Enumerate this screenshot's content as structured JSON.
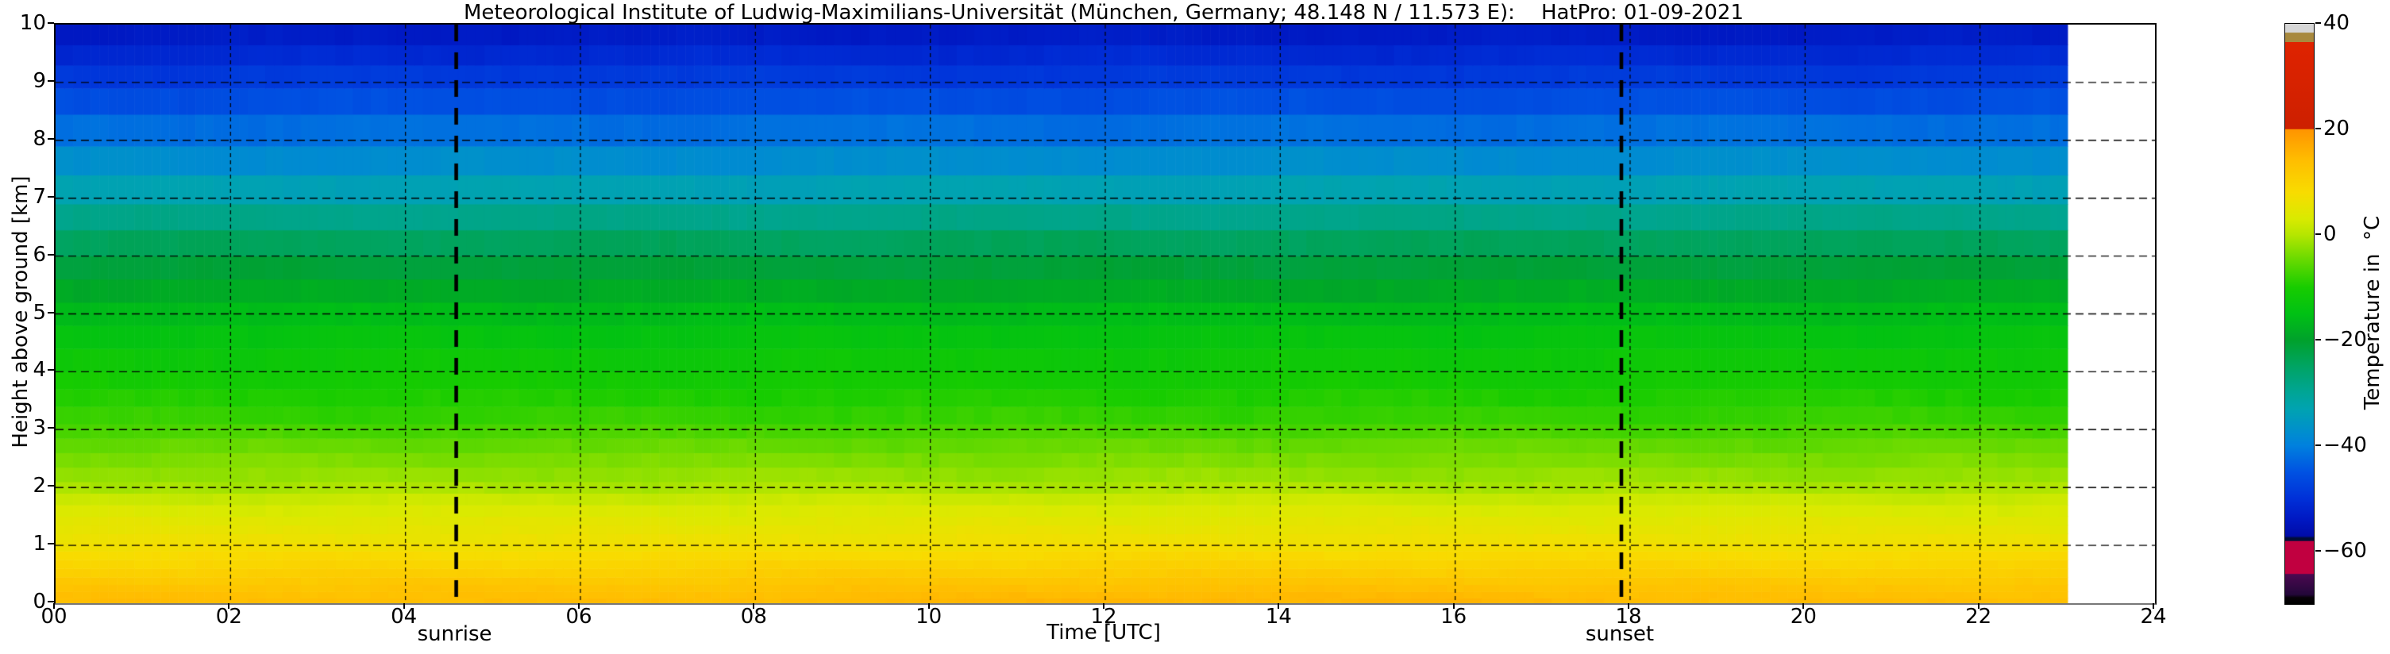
{
  "title": "Meteorological Institute of Ludwig-Maximilians-Universität (München, Germany; 48.148 N / 11.573 E):    HatPro: 01-09-2021",
  "plot": {
    "xlabel": "Time [UTC]",
    "ylabel": "Height above ground [km]",
    "x_ticks": [
      "00",
      "02",
      "04",
      "06",
      "08",
      "10",
      "12",
      "14",
      "16",
      "18",
      "20",
      "22",
      "24"
    ],
    "x_tick_hours": [
      0,
      2,
      4,
      6,
      8,
      10,
      12,
      14,
      16,
      18,
      20,
      22,
      24
    ],
    "y_ticks": [
      "0",
      "1",
      "2",
      "3",
      "4",
      "5",
      "6",
      "7",
      "8",
      "9",
      "10"
    ],
    "y_tick_km": [
      0,
      1,
      2,
      3,
      4,
      5,
      6,
      7,
      8,
      9,
      10
    ],
    "grid": "dashed black, every 2 h and every 1 km"
  },
  "annotations": {
    "sunrise_label": "sunrise",
    "sunset_label": "sunset",
    "sunrise_hour": 4.58,
    "sunset_hour": 17.9,
    "line_style": "thick black dashed vertical"
  },
  "colorbar": {
    "label": "Temperature in  °C",
    "range": [
      -70,
      40
    ],
    "tick_values": [
      40,
      20,
      0,
      -20,
      -40,
      -60
    ],
    "tick_labels": [
      "40",
      "20",
      "0",
      "−20",
      "−40",
      "−60"
    ]
  },
  "chart_data": {
    "type": "heatmap",
    "title": "Meteorological Institute of Ludwig-Maximilians-Universität (München, Germany; 48.148 N / 11.573 E):    HatPro: 01-09-2021",
    "xlabel": "Time [UTC]",
    "ylabel": "Height above ground [km]",
    "x_range_hours": [
      0,
      24
    ],
    "y_range_km": [
      0,
      10
    ],
    "data_end_hour": 23,
    "value_unit": "°C",
    "value_range": [
      -70,
      40
    ],
    "legend_position": "right colorbar",
    "height_levels_km": [
      0,
      0.09,
      0.2,
      0.32,
      0.45,
      0.6,
      0.75,
      0.9,
      1.05,
      1.2,
      1.35,
      1.5,
      1.7,
      1.9,
      2.1,
      2.35,
      2.6,
      2.85,
      3.1,
      3.4,
      3.7,
      4.0,
      4.4,
      4.8,
      5.2,
      5.6,
      6.0,
      6.45,
      6.9,
      7.4,
      7.9,
      8.45,
      8.9,
      9.3,
      9.65,
      10.0
    ],
    "temperature_profile": {
      "heights_km": [
        0,
        0.1,
        0.3,
        0.5,
        0.7,
        0.9,
        1.0,
        1.15,
        1.3,
        1.45,
        1.6,
        1.8,
        2.0,
        2.2,
        2.5,
        2.8,
        3.1,
        3.5,
        3.9,
        4.4,
        5.0,
        5.6,
        6.2,
        7.0,
        8.0,
        9.0,
        10.0
      ],
      "temps_c": [
        14.3,
        13.8,
        12.6,
        10.8,
        9.2,
        7.6,
        6.8,
        5.9,
        5.0,
        4.2,
        3.2,
        1.6,
        -0.6,
        -2.0,
        -3.6,
        -5.4,
        -7.6,
        -9.2,
        -11.0,
        -12.8,
        -15.8,
        -19.8,
        -24.0,
        -32.0,
        -40.5,
        -48.0,
        -54.5
      ]
    },
    "colormap_stops": [
      [
        40.0,
        "#d6d6d6"
      ],
      [
        38.35,
        "#d6d6d6"
      ],
      [
        38.3,
        "#a8893e"
      ],
      [
        36.55,
        "#a8893e"
      ],
      [
        36.5,
        "#df2300"
      ],
      [
        20.05,
        "#cd2000"
      ],
      [
        20.0,
        "#ff9400"
      ],
      [
        14.0,
        "#ffbe00"
      ],
      [
        8.0,
        "#f8dc00"
      ],
      [
        3.0,
        "#d9ea00"
      ],
      [
        0.0,
        "#b5e600"
      ],
      [
        -5.0,
        "#63d900"
      ],
      [
        -10.0,
        "#17cc00"
      ],
      [
        -15.0,
        "#00c114"
      ],
      [
        -20.0,
        "#00a12c"
      ],
      [
        -25.0,
        "#00a464"
      ],
      [
        -30.0,
        "#00a596"
      ],
      [
        -33.0,
        "#00a3b1"
      ],
      [
        -37.0,
        "#0090cb"
      ],
      [
        -40.0,
        "#0080de"
      ],
      [
        -45.0,
        "#0052e2"
      ],
      [
        -50.0,
        "#0030d8"
      ],
      [
        -54.0,
        "#0018c2"
      ],
      [
        -57.1,
        "#000ca8"
      ],
      [
        -57.5,
        "#000d37"
      ],
      [
        -58.0,
        "#000d37"
      ],
      [
        -58.1,
        "#c10040"
      ],
      [
        -64.2,
        "#c10040"
      ],
      [
        -64.4,
        "#4b0950"
      ],
      [
        -68.2,
        "#23073a"
      ],
      [
        -68.8,
        "#070208"
      ],
      [
        -70.0,
        "#000000"
      ]
    ]
  }
}
